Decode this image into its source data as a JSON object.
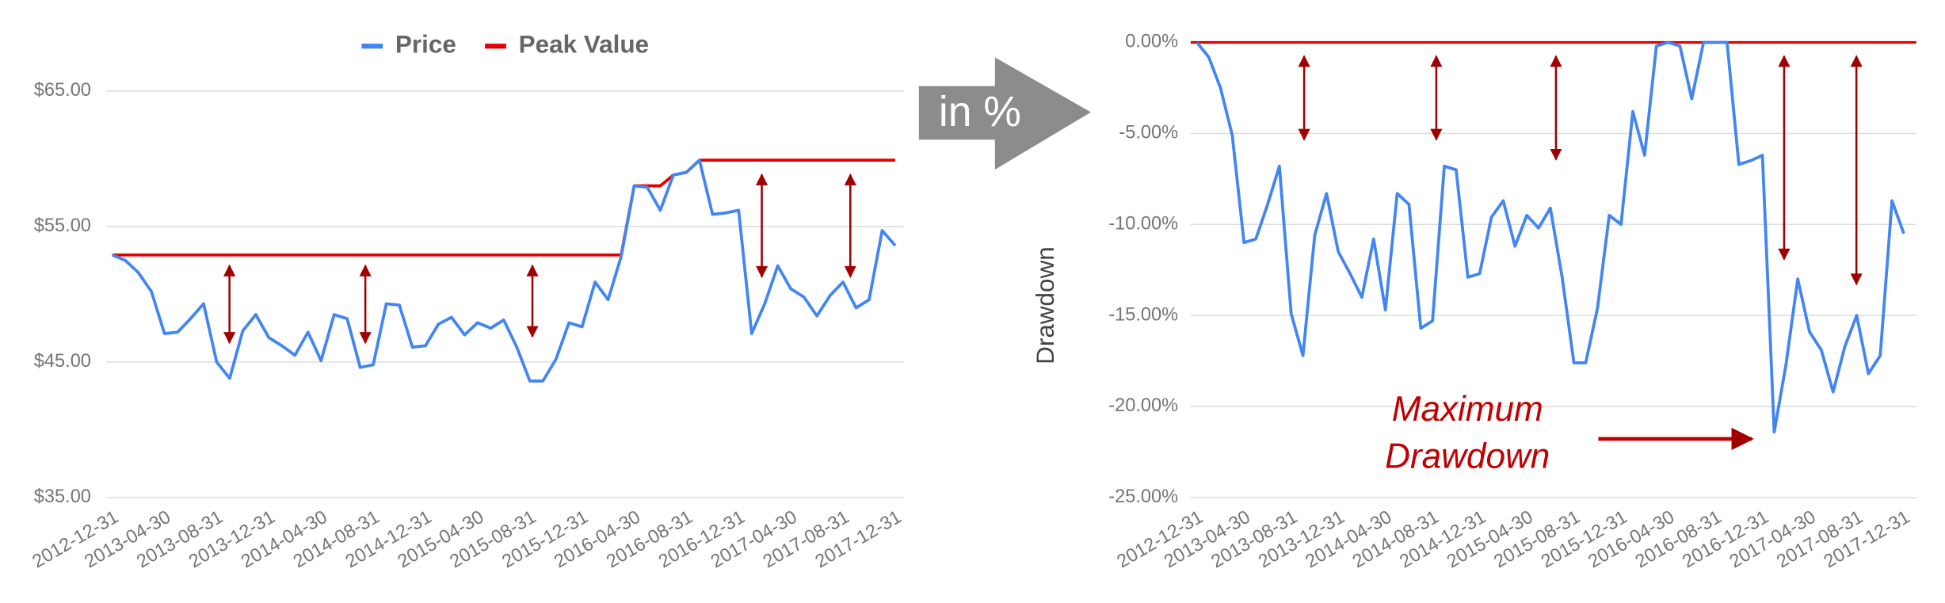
{
  "arrow_label": "in %",
  "chart_data": [
    {
      "type": "line",
      "categories": [
        "2012-12-31",
        null,
        null,
        null,
        "2013-04-30",
        null,
        null,
        null,
        "2013-08-31",
        null,
        null,
        null,
        "2013-12-31",
        null,
        null,
        null,
        "2014-04-30",
        null,
        null,
        null,
        "2014-08-31",
        null,
        null,
        null,
        "2014-12-31",
        null,
        null,
        null,
        "2015-04-30",
        null,
        null,
        null,
        "2015-08-31",
        null,
        null,
        null,
        "2015-12-31",
        null,
        null,
        null,
        "2016-04-30",
        null,
        null,
        null,
        "2016-08-31",
        null,
        null,
        null,
        "2016-12-31",
        null,
        null,
        null,
        "2017-04-30",
        null,
        null,
        null,
        "2017-08-31",
        null,
        null,
        null,
        "2017-12-31"
      ],
      "series": [
        {
          "name": "Price",
          "color": "#4285f4",
          "values": [
            52.9,
            52.5,
            51.6,
            50.2,
            47.1,
            47.2,
            48.2,
            49.3,
            45.0,
            43.8,
            47.3,
            48.5,
            46.8,
            46.2,
            45.5,
            47.2,
            45.1,
            48.5,
            48.2,
            44.6,
            44.8,
            49.3,
            49.2,
            46.1,
            46.2,
            47.8,
            48.3,
            47.0,
            47.9,
            47.5,
            48.1,
            46.1,
            43.6,
            43.6,
            45.2,
            47.9,
            47.6,
            50.9,
            49.6,
            52.8,
            58.0,
            57.9,
            56.2,
            58.8,
            59.0,
            59.9,
            55.9,
            56.0,
            56.2,
            47.1,
            49.3,
            52.1,
            50.4,
            49.8,
            48.4,
            49.9,
            50.9,
            49.0,
            49.6,
            54.7,
            53.6
          ]
        },
        {
          "name": "Peak Value",
          "color": "#e50000",
          "values": [
            52.9,
            52.9,
            52.9,
            52.9,
            52.9,
            52.9,
            52.9,
            52.9,
            52.9,
            52.9,
            52.9,
            52.9,
            52.9,
            52.9,
            52.9,
            52.9,
            52.9,
            52.9,
            52.9,
            52.9,
            52.9,
            52.9,
            52.9,
            52.9,
            52.9,
            52.9,
            52.9,
            52.9,
            52.9,
            52.9,
            52.9,
            52.9,
            52.9,
            52.9,
            52.9,
            52.9,
            52.9,
            52.9,
            52.9,
            52.9,
            58.0,
            58.0,
            58.0,
            58.8,
            59.0,
            59.9,
            59.9,
            59.9,
            59.9,
            59.9,
            59.9,
            59.9,
            59.9,
            59.9,
            59.9,
            59.9,
            59.9,
            59.9,
            59.9,
            59.9,
            59.9
          ]
        }
      ],
      "ylim": [
        35,
        65
      ],
      "yticks": [
        {
          "value": 35,
          "label": "$35.00"
        },
        {
          "value": 45,
          "label": "$45.00"
        },
        {
          "value": 55,
          "label": "$55.00"
        },
        {
          "value": 65,
          "label": "$65.00"
        }
      ],
      "grid": true
    },
    {
      "type": "line",
      "y_label": "Drawdown",
      "annotation": [
        "Maximum",
        "Drawdown"
      ],
      "categories": [
        "2012-12-31",
        null,
        null,
        null,
        "2013-04-30",
        null,
        null,
        null,
        "2013-08-31",
        null,
        null,
        null,
        "2013-12-31",
        null,
        null,
        null,
        "2014-04-30",
        null,
        null,
        null,
        "2014-08-31",
        null,
        null,
        null,
        "2014-12-31",
        null,
        null,
        null,
        "2015-04-30",
        null,
        null,
        null,
        "2015-08-31",
        null,
        null,
        null,
        "2015-12-31",
        null,
        null,
        null,
        "2016-04-30",
        null,
        null,
        null,
        "2016-08-31",
        null,
        null,
        null,
        "2016-12-31",
        null,
        null,
        null,
        "2017-04-30",
        null,
        null,
        null,
        "2017-08-31",
        null,
        null,
        null,
        "2017-12-31"
      ],
      "color": "#4285f4",
      "values": [
        0,
        -0.8,
        -2.5,
        -5.1,
        -11.0,
        -10.8,
        -8.9,
        -6.8,
        -14.9,
        -17.2,
        -10.6,
        -8.3,
        -11.5,
        -12.7,
        -14.0,
        -10.8,
        -14.7,
        -8.3,
        -8.9,
        -15.7,
        -15.3,
        -6.8,
        -7.0,
        -12.9,
        -12.7,
        -9.6,
        -8.7,
        -11.2,
        -9.5,
        -10.2,
        -9.1,
        -12.9,
        -17.6,
        -17.6,
        -14.6,
        -9.5,
        -10.0,
        -3.8,
        -6.2,
        -0.2,
        0,
        -0.2,
        -3.1,
        0,
        0,
        0,
        -6.7,
        -6.5,
        -6.2,
        -21.4,
        -17.7,
        -13.0,
        -15.9,
        -16.9,
        -19.2,
        -16.7,
        -15.0,
        -18.2,
        -17.2,
        -8.7,
        -10.5
      ],
      "ylim": [
        -25,
        0
      ],
      "yticks": [
        {
          "value": -25,
          "label": "-25.00%"
        },
        {
          "value": -20,
          "label": "-20.00%"
        },
        {
          "value": -15,
          "label": "-15.00%"
        },
        {
          "value": -10,
          "label": "-10.00%"
        },
        {
          "value": -5,
          "label": "-5.00%"
        },
        {
          "value": 0,
          "label": "0.00%"
        }
      ],
      "grid": true,
      "baseline_color": "#e50000"
    }
  ]
}
